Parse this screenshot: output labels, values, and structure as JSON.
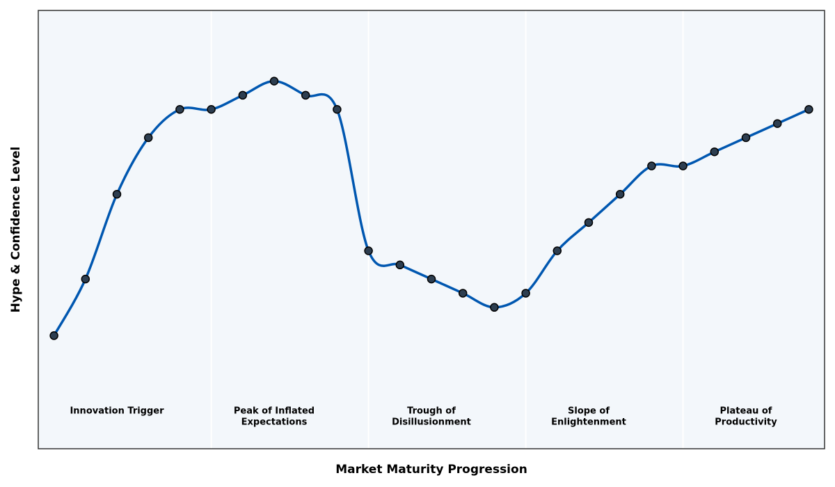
{
  "chart_data": {
    "type": "line",
    "x_label": "Market Maturity Progression",
    "y_label": "Hype & Confidence Level",
    "x": [
      0,
      1,
      2,
      3,
      4,
      5,
      6,
      7,
      8,
      9,
      10,
      11,
      12,
      13,
      14,
      15,
      16,
      17,
      18,
      19,
      20,
      21,
      22,
      23,
      24
    ],
    "series": [
      {
        "color": "#0057b0",
        "marker_color": "#2d3e50",
        "values": [
          8,
          12,
          18,
          22,
          24,
          24,
          25,
          26,
          25,
          24,
          14,
          13,
          12,
          11,
          10,
          11,
          14,
          16,
          18,
          20,
          20,
          21,
          22,
          23,
          24
        ]
      }
    ],
    "xlim": [
      -0.5,
      24.5
    ],
    "ylim": [
      0,
      31
    ],
    "background": "#f3f7fb",
    "phase_boundaries": [
      5,
      10,
      15,
      20
    ],
    "phases": [
      {
        "label": [
          "Innovation Trigger"
        ],
        "x": 2
      },
      {
        "label": [
          "Peak of Inflated",
          "Expectations"
        ],
        "x": 7
      },
      {
        "label": [
          "Trough of",
          "Disillusionment"
        ],
        "x": 12
      },
      {
        "label": [
          "Slope of",
          "Enlightenment"
        ],
        "x": 17
      },
      {
        "label": [
          "Plateau of",
          "Productivity"
        ],
        "x": 22
      }
    ]
  }
}
